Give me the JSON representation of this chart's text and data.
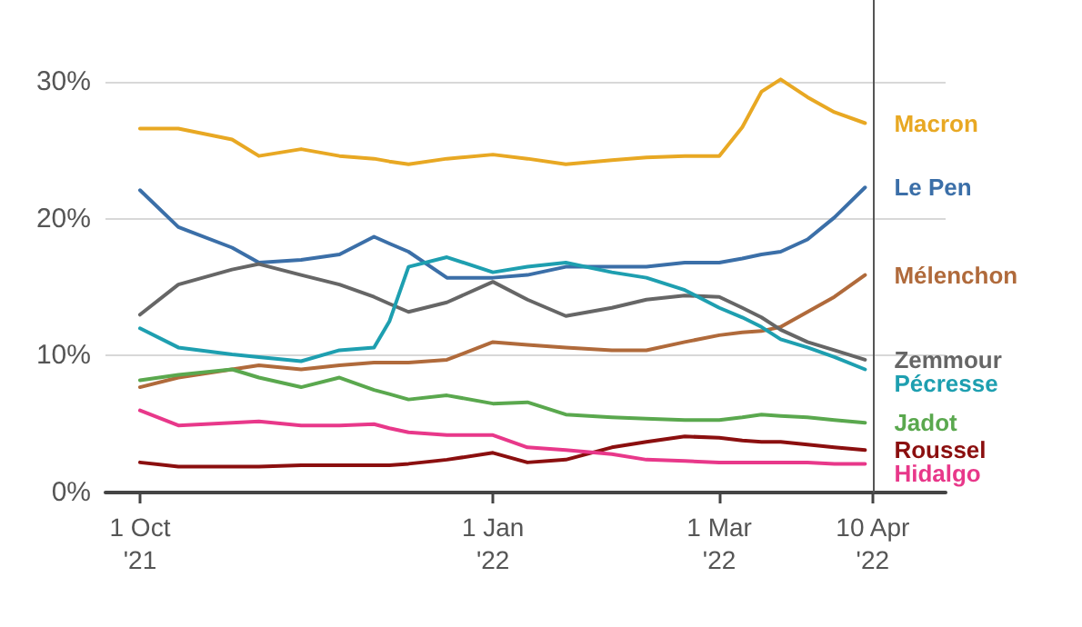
{
  "chart_data": {
    "type": "line",
    "x": [
      "2021-10-01",
      "2021-10-11",
      "2021-10-25",
      "2021-11-01",
      "2021-11-12",
      "2021-11-22",
      "2021-12-01",
      "2021-12-05",
      "2021-12-10",
      "2021-12-20",
      "2022-01-01",
      "2022-01-10",
      "2022-01-20",
      "2022-02-01",
      "2022-02-10",
      "2022-02-20",
      "2022-03-01",
      "2022-03-07",
      "2022-03-12",
      "2022-03-17",
      "2022-03-24",
      "2022-03-31",
      "2022-04-08"
    ],
    "series": [
      {
        "name": "Macron",
        "color": "#e8a823",
        "values": [
          26.6,
          26.6,
          25.8,
          24.6,
          25.1,
          24.6,
          24.4,
          24.2,
          24.0,
          24.4,
          24.7,
          24.4,
          24.0,
          24.3,
          24.5,
          24.6,
          24.6,
          26.7,
          29.3,
          30.2,
          28.9,
          27.8,
          27.0
        ]
      },
      {
        "name": "Le Pen",
        "color": "#3b6fa8",
        "values": [
          22.1,
          19.4,
          17.9,
          16.8,
          17.0,
          17.4,
          18.7,
          18.2,
          17.6,
          15.7,
          15.7,
          15.9,
          16.5,
          16.5,
          16.5,
          16.8,
          16.8,
          17.1,
          17.4,
          17.6,
          18.5,
          20.1,
          22.3
        ]
      },
      {
        "name": "Mélenchon",
        "color": "#b06a3b",
        "values": [
          7.7,
          8.4,
          9.0,
          9.3,
          9.0,
          9.3,
          9.5,
          9.5,
          9.5,
          9.7,
          11.0,
          10.8,
          10.6,
          10.4,
          10.4,
          11.0,
          11.5,
          11.7,
          11.8,
          12.1,
          13.2,
          14.3,
          15.9
        ]
      },
      {
        "name": "Zemmour",
        "color": "#666666",
        "values": [
          13.0,
          15.2,
          16.3,
          16.7,
          15.9,
          15.2,
          14.3,
          13.8,
          13.2,
          13.9,
          15.4,
          14.1,
          12.9,
          13.5,
          14.1,
          14.4,
          14.3,
          13.5,
          12.8,
          11.9,
          11.0,
          10.4,
          9.7
        ]
      },
      {
        "name": "Pécresse",
        "color": "#1e9fb0",
        "values": [
          12.0,
          10.6,
          10.1,
          9.9,
          9.6,
          10.4,
          10.6,
          12.5,
          16.5,
          17.2,
          16.1,
          16.5,
          16.8,
          16.1,
          15.7,
          14.8,
          13.5,
          12.8,
          12.1,
          11.2,
          10.6,
          9.9,
          9.0
        ]
      },
      {
        "name": "Jadot",
        "color": "#5aa84e",
        "values": [
          8.2,
          8.6,
          9.0,
          8.4,
          7.7,
          8.4,
          7.5,
          7.2,
          6.8,
          7.1,
          6.5,
          6.6,
          5.7,
          5.5,
          5.4,
          5.3,
          5.3,
          5.5,
          5.7,
          5.6,
          5.5,
          5.3,
          5.1
        ]
      },
      {
        "name": "Roussel",
        "color": "#8b0f0f",
        "values": [
          2.2,
          1.9,
          1.9,
          1.9,
          2.0,
          2.0,
          2.0,
          2.0,
          2.1,
          2.4,
          2.9,
          2.2,
          2.4,
          3.3,
          3.7,
          4.1,
          4.0,
          3.8,
          3.7,
          3.7,
          3.5,
          3.3,
          3.1
        ]
      },
      {
        "name": "Hidalgo",
        "color": "#e8388a",
        "values": [
          6.0,
          4.9,
          5.1,
          5.2,
          4.9,
          4.9,
          5.0,
          4.7,
          4.4,
          4.2,
          4.2,
          3.3,
          3.1,
          2.8,
          2.4,
          2.3,
          2.2,
          2.2,
          2.2,
          2.2,
          2.2,
          2.1,
          2.1
        ]
      }
    ],
    "xlim": [
      "2021-09-22",
      "2022-04-29"
    ],
    "xticks": [
      {
        "value": "2021-10-01",
        "label": "1 Oct\n'21"
      },
      {
        "value": "2022-01-01",
        "label": "1 Jan\n'22"
      },
      {
        "value": "2022-03-01",
        "label": "1 Mar\n'22"
      },
      {
        "value": "2022-04-10",
        "label": "10 Apr\n'22"
      }
    ],
    "ylim": [
      0,
      36
    ],
    "yticks": [
      {
        "value": 0,
        "label": "0%"
      },
      {
        "value": 10,
        "label": "10%"
      },
      {
        "value": 20,
        "label": "20%"
      },
      {
        "value": 30,
        "label": "30%"
      }
    ],
    "ref_lines": [
      {
        "axis": "x",
        "value": "2022-04-10",
        "color": "#555555"
      }
    ],
    "grid": "y",
    "legend": false,
    "marker": "none",
    "line_style": "solid"
  }
}
